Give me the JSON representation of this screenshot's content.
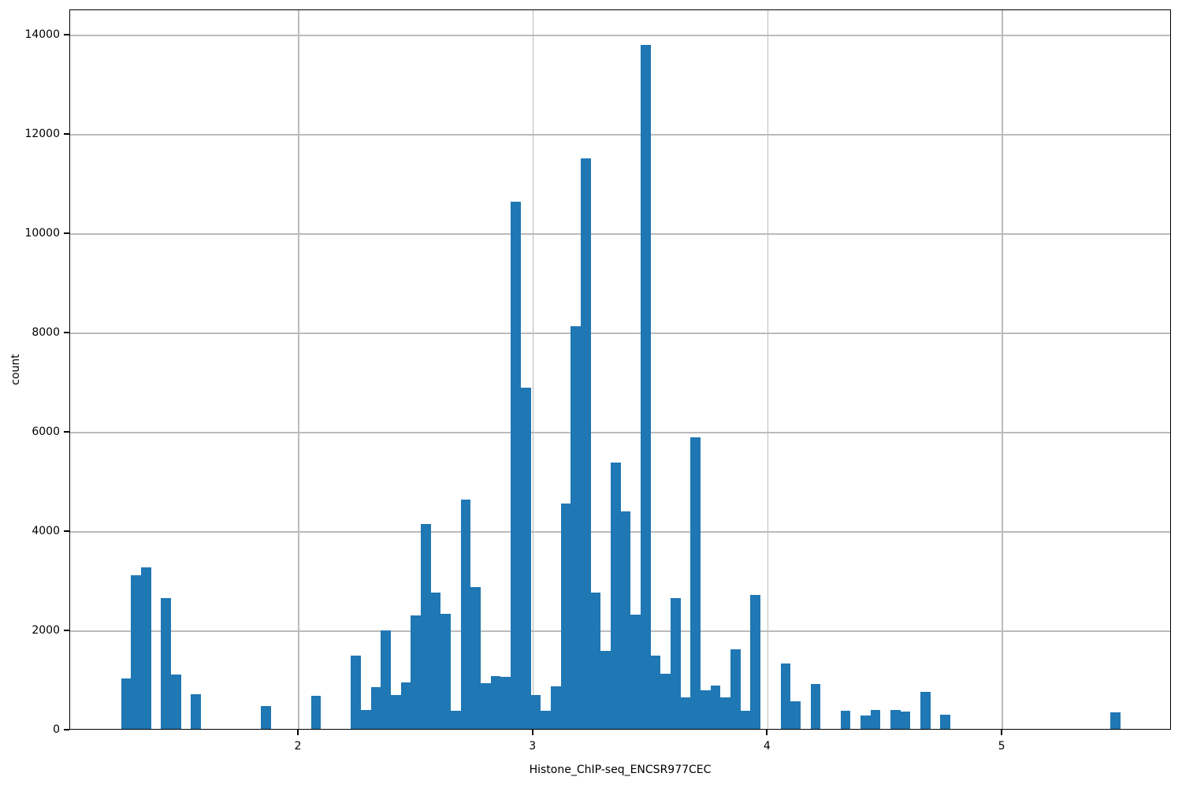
{
  "figure": {
    "bar_color": "#1f77b4",
    "grid_color": "#bbbbbb",
    "spine_color": "#000000",
    "background": "#ffffff"
  },
  "chart_data": {
    "type": "bar",
    "subtype": "histogram",
    "title": "",
    "xlabel": "Histone_ChIP-seq_ENCSR977CEC",
    "ylabel": "count",
    "x_ticks": [
      2,
      3,
      4,
      5
    ],
    "y_ticks": [
      0,
      2000,
      4000,
      6000,
      8000,
      10000,
      12000,
      14000
    ],
    "xlim": [
      1.03,
      5.72
    ],
    "ylim": [
      0,
      14510
    ],
    "grid": true,
    "legend": false,
    "bin_width": 0.0426,
    "bins": [
      [
        1.243,
        1020
      ],
      [
        1.286,
        3100
      ],
      [
        1.328,
        3250
      ],
      [
        1.414,
        2630
      ],
      [
        1.456,
        1090
      ],
      [
        1.541,
        700
      ],
      [
        1.839,
        460
      ],
      [
        2.052,
        670
      ],
      [
        2.219,
        1480
      ],
      [
        2.262,
        380
      ],
      [
        2.305,
        840
      ],
      [
        2.347,
        1980
      ],
      [
        2.39,
        690
      ],
      [
        2.432,
        940
      ],
      [
        2.475,
        2280
      ],
      [
        2.518,
        4130
      ],
      [
        2.56,
        2750
      ],
      [
        2.603,
        2310
      ],
      [
        2.645,
        360
      ],
      [
        2.688,
        4620
      ],
      [
        2.731,
        2860
      ],
      [
        2.773,
        920
      ],
      [
        2.816,
        1060
      ],
      [
        2.858,
        1040
      ],
      [
        2.901,
        10620
      ],
      [
        2.944,
        6880
      ],
      [
        2.986,
        690
      ],
      [
        3.029,
        370
      ],
      [
        3.071,
        860
      ],
      [
        3.114,
        4540
      ],
      [
        3.156,
        8110
      ],
      [
        3.199,
        11490
      ],
      [
        3.242,
        2750
      ],
      [
        3.284,
        1570
      ],
      [
        3.327,
        5370
      ],
      [
        3.369,
        4380
      ],
      [
        3.412,
        2300
      ],
      [
        3.455,
        13780
      ],
      [
        3.497,
        1470
      ],
      [
        3.54,
        1110
      ],
      [
        3.582,
        2640
      ],
      [
        3.625,
        640
      ],
      [
        3.668,
        5870
      ],
      [
        3.71,
        780
      ],
      [
        3.753,
        880
      ],
      [
        3.795,
        630
      ],
      [
        3.838,
        1610
      ],
      [
        3.881,
        360
      ],
      [
        3.923,
        2700
      ],
      [
        4.054,
        1320
      ],
      [
        4.096,
        550
      ],
      [
        4.181,
        910
      ],
      [
        4.309,
        370
      ],
      [
        4.394,
        270
      ],
      [
        4.436,
        380
      ],
      [
        4.521,
        380
      ],
      [
        4.564,
        355
      ],
      [
        4.649,
        740
      ],
      [
        4.735,
        290
      ],
      [
        5.459,
        340
      ]
    ]
  }
}
